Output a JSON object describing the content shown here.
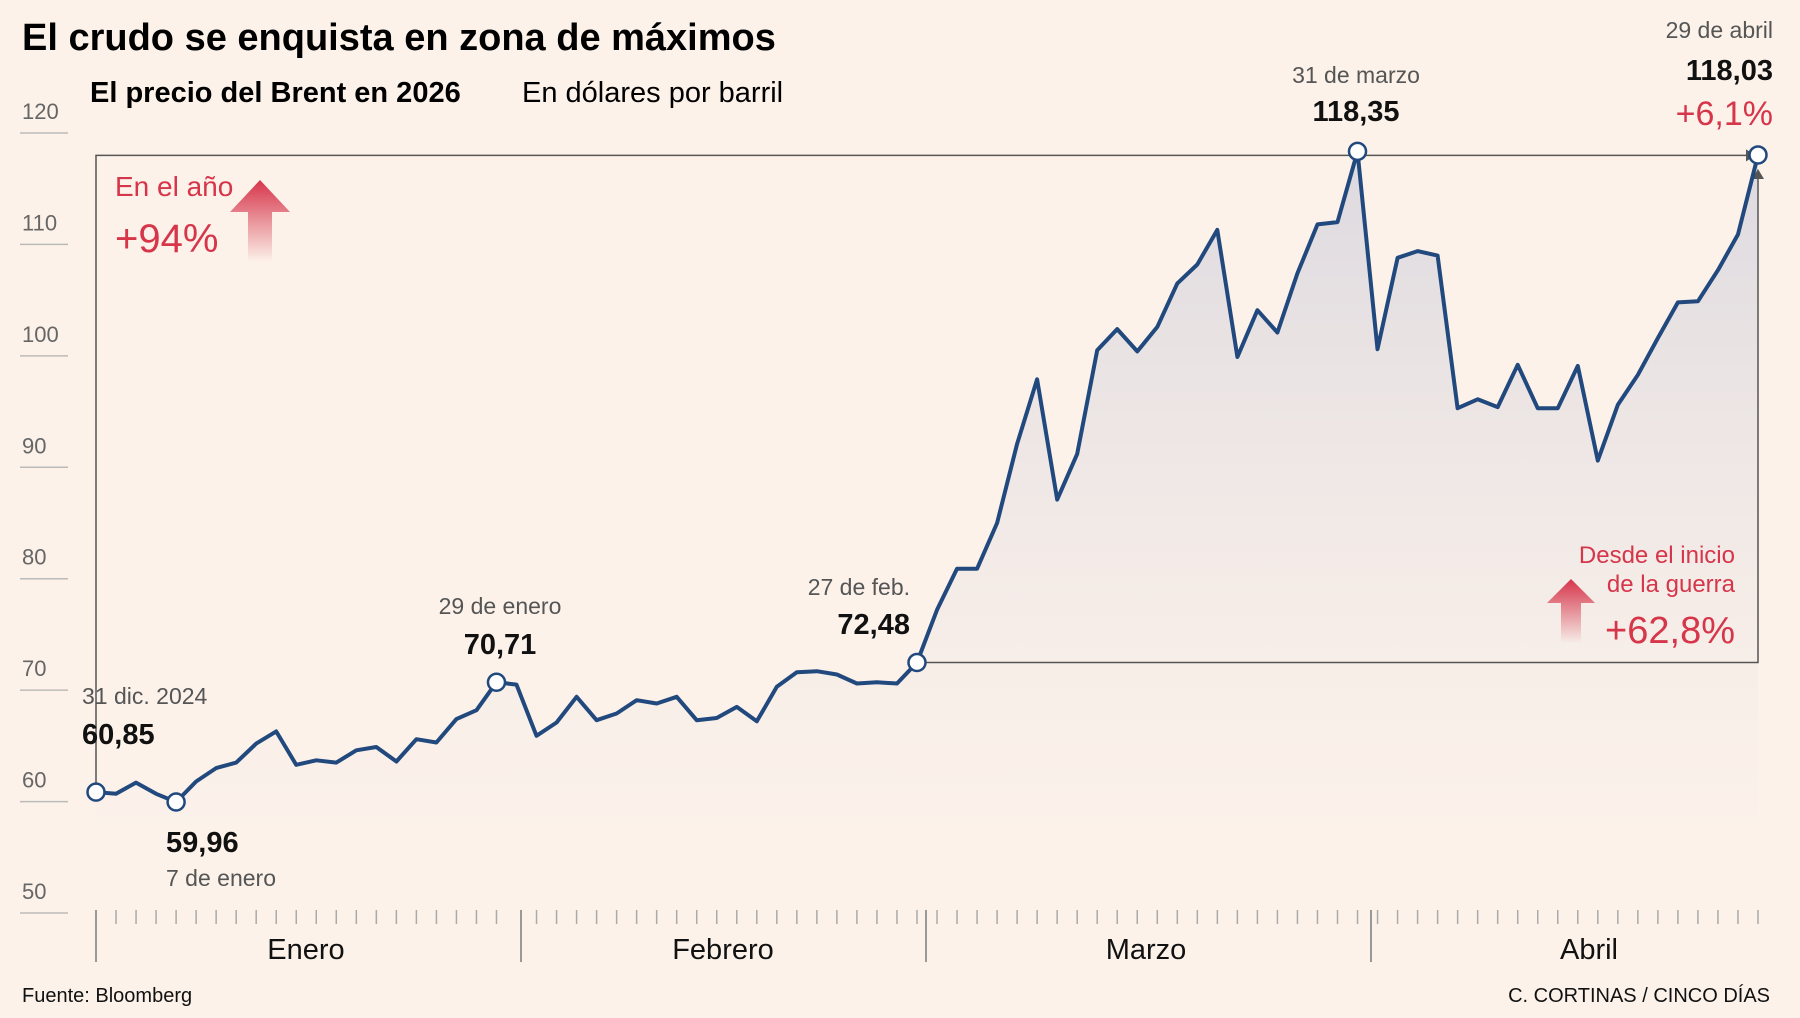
{
  "title": "El crudo se enquista en zona de máximos",
  "subtitle": "El precio del Brent en 2026",
  "unit": "En dólares por barril",
  "source": "Fuente: Bloomberg",
  "credit": "C. CORTINAS / CINCO DÍAS",
  "colors": {
    "line": "#21497e",
    "accent": "#d6354a",
    "background": "#fcf2ea"
  },
  "annotations": {
    "year": {
      "label": "En el año",
      "value": "+94%"
    },
    "war": {
      "label_line1": "Desde el inicio",
      "label_line2": "de la guerra",
      "value": "+62,8%"
    },
    "last_change": "+6,1%"
  },
  "markers": [
    {
      "date": "31 dic. 2024",
      "value": "60,85"
    },
    {
      "date": "7 de enero",
      "value": "59,96"
    },
    {
      "date": "29 de enero",
      "value": "70,71"
    },
    {
      "date": "27 de feb.",
      "value": "72,48"
    },
    {
      "date": "31 de marzo",
      "value": "118,35"
    },
    {
      "date": "29 de abril",
      "value": "118,03"
    }
  ],
  "chart_data": {
    "type": "area",
    "ylim": [
      50,
      120
    ],
    "yticks": [
      50,
      60,
      70,
      80,
      90,
      100,
      110,
      120
    ],
    "months": [
      "Enero",
      "Febrero",
      "Marzo",
      "Abril"
    ],
    "grid": false,
    "series": [
      {
        "values": [
          60.85,
          60.7,
          61.7,
          60.7,
          59.96,
          61.8,
          63.0,
          63.5,
          65.2,
          66.3,
          63.3,
          63.7,
          63.5,
          64.6,
          64.9,
          63.6,
          65.6,
          65.3,
          67.4,
          68.2,
          70.71,
          70.5,
          65.9,
          67.1,
          69.4,
          67.3,
          67.9,
          69.1,
          68.8,
          69.4,
          67.3,
          67.5,
          68.5,
          67.2,
          70.3,
          71.6,
          71.7,
          71.4,
          70.6,
          70.7,
          70.6,
          72.48,
          77.2,
          80.9,
          80.9,
          85.0,
          92.1,
          97.9,
          87.1,
          91.2,
          100.5,
          102.4,
          100.4,
          102.6,
          106.5,
          108.2,
          111.3,
          99.9,
          104.1,
          102.1,
          107.4,
          111.8,
          112.0,
          118.35,
          100.6,
          108.8,
          109.4,
          109.0,
          95.3,
          96.1,
          95.4,
          99.2,
          95.3,
          95.3,
          99.1,
          90.6,
          95.6,
          98.3,
          101.6,
          104.8,
          104.9,
          107.7,
          110.9,
          118.03
        ]
      }
    ]
  }
}
